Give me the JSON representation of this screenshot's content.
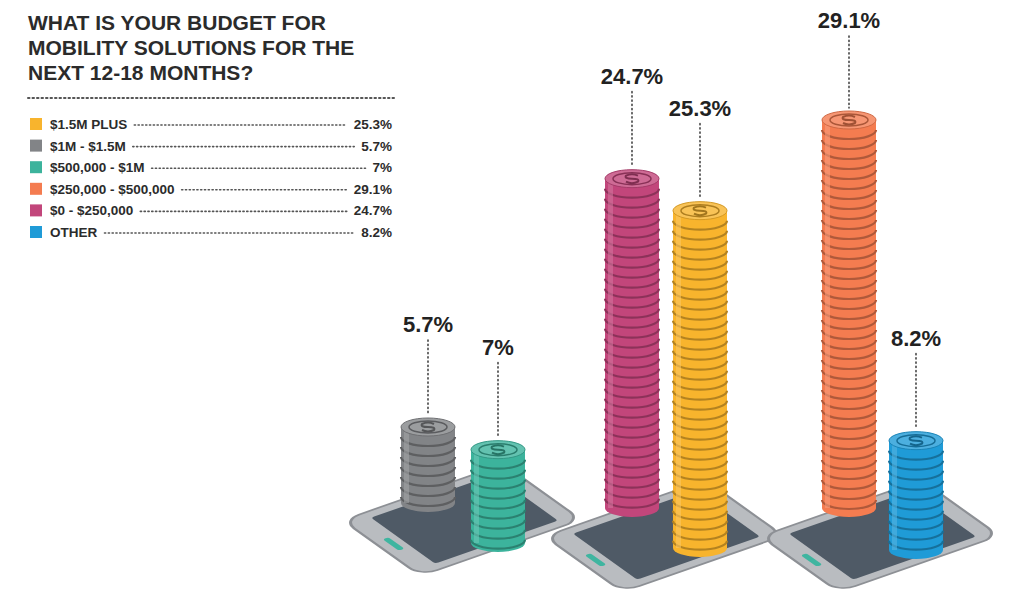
{
  "chart_data": {
    "type": "bar",
    "title": "WHAT IS YOUR BUDGET FOR MOBILITY SOLUTIONS FOR THE NEXT 12-18 MONTHS?",
    "categories": [
      "$1.5M PLUS",
      "$1M - $1.5M",
      "$500,000 - $1M",
      "$250,000 - $500,000",
      "$0 - $250,000",
      "OTHER"
    ],
    "values": [
      25.3,
      5.7,
      7,
      29.1,
      24.7,
      8.2
    ],
    "value_labels": [
      "25.3%",
      "5.7%",
      "7%",
      "29.1%",
      "24.7%",
      "8.2%"
    ],
    "colors": [
      "#f8b42d",
      "#828487",
      "#3cb39c",
      "#f47c50",
      "#c2467b",
      "#1f9bd7"
    ],
    "ylim": [
      0,
      30
    ],
    "tick_labels": false,
    "grid": false,
    "legend": "top-left",
    "data_labels": true
  }
}
